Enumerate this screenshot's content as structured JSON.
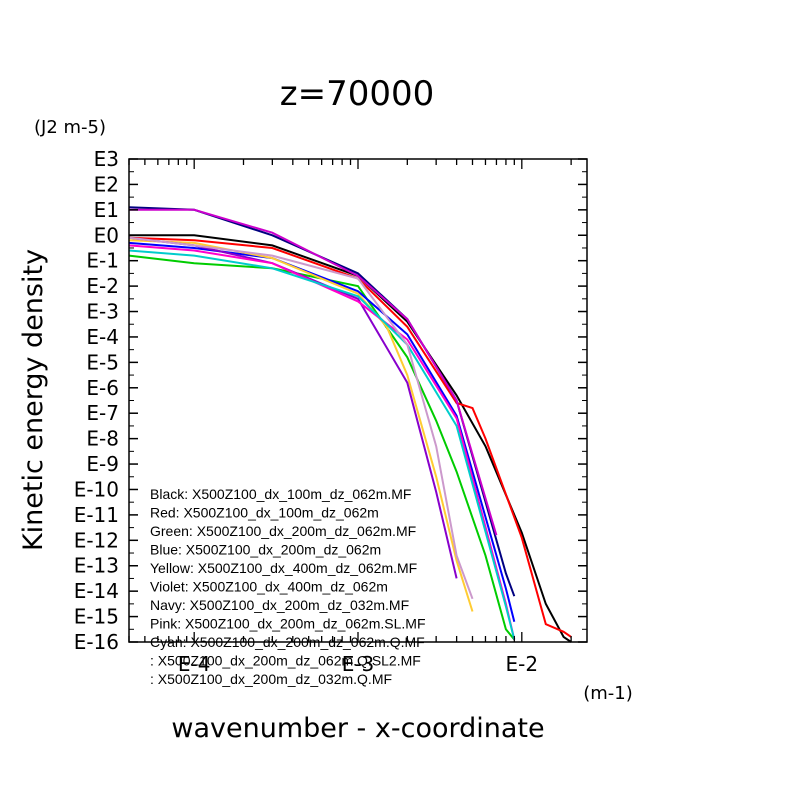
{
  "chart_data": {
    "type": "line",
    "title": "z=70000",
    "xlabel": "wavenumber - x-coordinate",
    "ylabel": "Kinetic energy density",
    "xunit": "(m-1)",
    "yunit": "(J2 m-5)",
    "xscale": "log",
    "yscale": "log",
    "xlim": [
      4e-05,
      0.025
    ],
    "ylim": [
      -16,
      3
    ],
    "x_ticks": [
      {
        "label": "E-4",
        "value": 0.0001
      },
      {
        "label": "E-3",
        "value": 0.001
      },
      {
        "label": "E-2",
        "value": 0.01
      }
    ],
    "y_ticks": [
      "E3",
      "E2",
      "E1",
      "E0",
      "E-1",
      "E-2",
      "E-3",
      "E-4",
      "E-5",
      "E-6",
      "E-7",
      "E-8",
      "E-9",
      "E-10",
      "E-11",
      "E-12",
      "E-13",
      "E-14",
      "E-15",
      "E-16"
    ],
    "grid": false,
    "legend_position": "bottom-left",
    "legend": [
      "Black: X500Z100_dx_100m_dz_062m.MF",
      "Red: X500Z100_dx_100m_dz_062m",
      "Green: X500Z100_dx_200m_dz_062m.MF",
      "Blue: X500Z100_dx_200m_dz_062m",
      "Yellow: X500Z100_dx_400m_dz_062m.MF",
      "Violet: X500Z100_dx_400m_dz_062m",
      "Navy: X500Z100_dx_200m_dz_032m.MF",
      "Pink: X500Z100_dx_200m_dz_062m.SL.MF",
      "Cyan: X500Z100_dx_200m_dz_062m.Q.MF",
      ": X500Z100_dx_200m_dz_062m.Q.SL2.MF",
      ": X500Z100_dx_200m_dz_032m.Q.MF"
    ],
    "series": [
      {
        "color": "#000000",
        "x": [
          4e-05,
          0.0001,
          0.0003,
          0.001,
          0.002,
          0.004,
          0.006,
          0.01,
          0.014,
          0.018,
          0.02
        ],
        "y": [
          0,
          0,
          -0.4,
          -1.6,
          -3.4,
          -6.3,
          -8.3,
          -11.7,
          -14.5,
          -15.8,
          -16
        ]
      },
      {
        "color": "#ff0000",
        "x": [
          4e-05,
          0.0001,
          0.0003,
          0.001,
          0.002,
          0.004,
          0.005,
          0.006,
          0.01,
          0.014,
          0.018,
          0.02
        ],
        "y": [
          -0.1,
          -0.2,
          -0.5,
          -1.7,
          -3.6,
          -6.6,
          -6.8,
          -8,
          -11.9,
          -15.3,
          -15.6,
          -15.8
        ]
      },
      {
        "color": "#00cc00",
        "x": [
          4e-05,
          0.0001,
          0.0003,
          0.001,
          0.002,
          0.003,
          0.004,
          0.006,
          0.008,
          0.009
        ],
        "y": [
          -0.8,
          -1.1,
          -1.3,
          -2,
          -4.8,
          -7.3,
          -9.3,
          -12.6,
          -15.5,
          -15.9
        ]
      },
      {
        "color": "#0000ff",
        "x": [
          4e-05,
          0.0001,
          0.0003,
          0.001,
          0.002,
          0.004,
          0.008,
          0.009
        ],
        "y": [
          -0.3,
          -0.5,
          -0.9,
          -2.2,
          -3.9,
          -7.1,
          -13.9,
          -15.2
        ]
      },
      {
        "color": "#ffcc33",
        "x": [
          4e-05,
          0.0001,
          0.0003,
          0.001,
          0.0015,
          0.002,
          0.003,
          0.004,
          0.005
        ],
        "y": [
          -0.2,
          -0.3,
          -0.9,
          -2.3,
          -3.6,
          -5.5,
          -9.5,
          -12.8,
          -14.8
        ]
      },
      {
        "color": "#8800cc",
        "x": [
          4e-05,
          0.0001,
          0.0003,
          0.001,
          0.002,
          0.003,
          0.004
        ],
        "y": [
          -0.1,
          -0.4,
          -1.1,
          -2.5,
          -5.8,
          -10.1,
          -13.5
        ]
      },
      {
        "color": "#000080",
        "x": [
          4e-05,
          0.0001,
          0.0003,
          0.001,
          0.002,
          0.004,
          0.008,
          0.009
        ],
        "y": [
          1.1,
          1.0,
          0,
          -1.5,
          -3.3,
          -6.5,
          -13.3,
          -14.2
        ]
      },
      {
        "color": "#ff00cc",
        "x": [
          4e-05,
          0.0001,
          0.0003,
          0.001,
          0.002,
          0.004,
          0.008,
          0.009
        ],
        "y": [
          -0.4,
          -0.6,
          -1.1,
          -2.6,
          -4.1,
          -7.2,
          -14.5,
          -15.9
        ]
      },
      {
        "color": "#00cccc",
        "x": [
          4e-05,
          0.0001,
          0.0003,
          0.001,
          0.002,
          0.004,
          0.008,
          0.009
        ],
        "y": [
          -0.6,
          -0.8,
          -1.3,
          -2.4,
          -4.3,
          -7.5,
          -14.6,
          -15.9
        ]
      },
      {
        "color": "#cc99cc",
        "x": [
          4e-05,
          0.0001,
          0.0003,
          0.001,
          0.002,
          0.003,
          0.004,
          0.005
        ],
        "y": [
          -0.1,
          -0.4,
          -0.8,
          -1.7,
          -4.3,
          -8.3,
          -12.6,
          -14.3
        ]
      },
      {
        "color": "#cc00cc",
        "x": [
          4e-05,
          0.0001,
          0.0003,
          0.001,
          0.002,
          0.004,
          0.007
        ],
        "y": [
          1.0,
          1.0,
          0.1,
          -1.6,
          -3.3,
          -6.5,
          -11.8
        ]
      }
    ]
  }
}
